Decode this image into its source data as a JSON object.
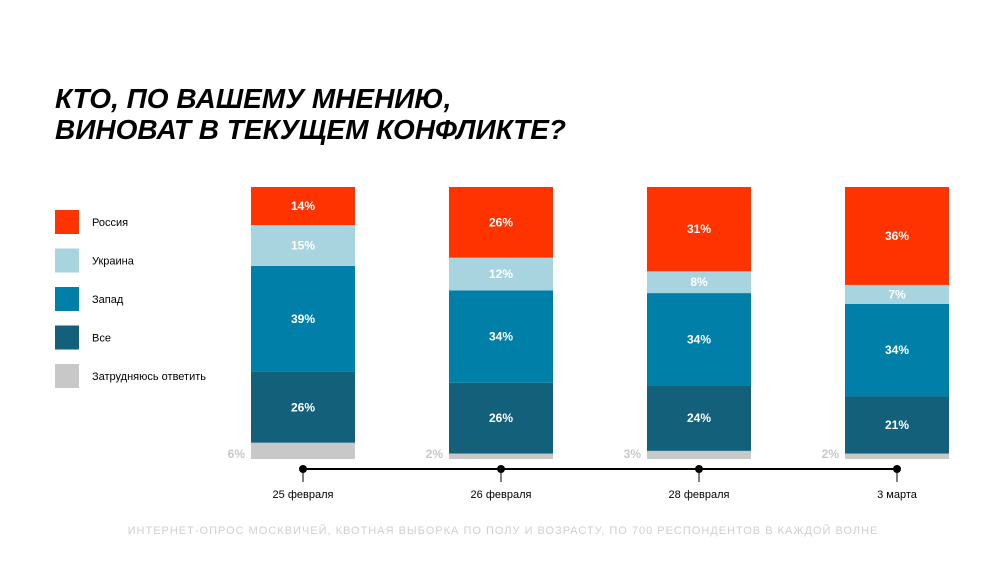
{
  "chart_data": {
    "type": "stacked-bar",
    "title": [
      "КТО, ПО ВАШЕМУ МНЕНИЮ,",
      "ВИНОВАТ В ТЕКУЩЕМ КОНФЛИКТЕ?"
    ],
    "categories": [
      "25 февраля",
      "26 февраля",
      "28 февраля",
      "3 марта"
    ],
    "ylim": [
      0,
      100
    ],
    "series": [
      {
        "name": "Россия",
        "color": "#ff3300",
        "values": [
          14,
          26,
          31,
          36
        ],
        "value_labels": [
          "14%",
          "26%",
          "31%",
          "36%"
        ]
      },
      {
        "name": "Украина",
        "color": "#a8d4e0",
        "values": [
          15,
          12,
          8,
          7
        ],
        "value_labels": [
          "15%",
          "12%",
          "8%",
          "7%"
        ]
      },
      {
        "name": "Запад",
        "color": "#0080a8",
        "values": [
          39,
          34,
          34,
          34
        ],
        "value_labels": [
          "39%",
          "34%",
          "34%",
          "34%"
        ]
      },
      {
        "name": "Все",
        "color": "#12607a",
        "values": [
          26,
          26,
          24,
          21
        ],
        "value_labels": [
          "26%",
          "26%",
          "24%",
          "21%"
        ]
      },
      {
        "name": "Затрудняюсь ответить",
        "color": "#c8c8c8",
        "values": [
          6,
          2,
          3,
          2
        ],
        "value_labels": [
          "6%",
          "2%",
          "3%",
          "2%"
        ]
      }
    ],
    "note": "ИНТЕРНЕТ-ОПРОС МОСКВИЧЕЙ, КВОТНАЯ ВЫБОРКА ПО ПОЛУ И ВОЗРАСТУ, ПО 700 РЕСПОНДЕНТОВ В КАЖДОЙ ВОЛНЕ"
  }
}
